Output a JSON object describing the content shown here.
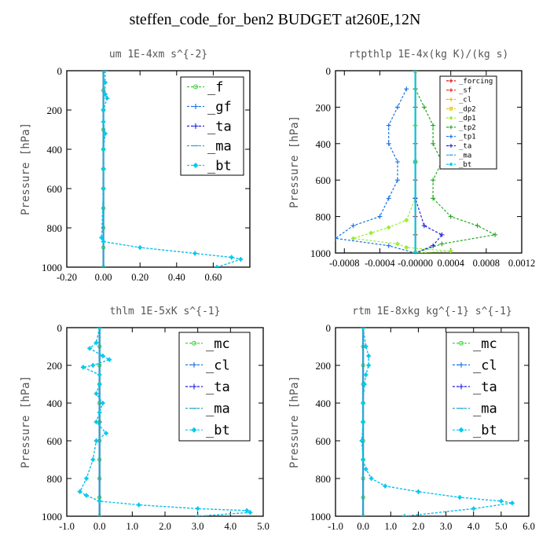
{
  "page": {
    "title": "steffen_code_for_ben2  BUDGET at260E,12N"
  },
  "chart_data": [
    {
      "type": "line",
      "title": "um  1E-4xm s^{-2}",
      "ylabel": "Pressure [hPa]",
      "xlabel": "",
      "xlim": [
        -0.2,
        0.8
      ],
      "ylim": [
        1000,
        0
      ],
      "xticks": [
        "-0.20",
        "0.00",
        "0.20",
        "0.40",
        "0.60"
      ],
      "xtick_values": [
        -0.2,
        0.0,
        0.2,
        0.4,
        0.6
      ],
      "yticks": [
        "0",
        "200",
        "400",
        "600",
        "800",
        "1000"
      ],
      "ytick_values": [
        0,
        200,
        400,
        600,
        800,
        1000
      ],
      "legend_position": "top-right",
      "series": [
        {
          "name": "_f",
          "color": "#33cc33",
          "marker": "circle",
          "x": [
            0,
            0,
            0,
            0,
            0,
            0,
            0,
            0,
            0,
            0,
            0
          ],
          "y": [
            0,
            100,
            200,
            300,
            400,
            500,
            600,
            700,
            800,
            900,
            1000
          ]
        },
        {
          "name": "_gf",
          "color": "#1a73e8",
          "marker": "plus",
          "x": [
            0.01,
            0.01,
            0.01,
            0.02,
            0.0,
            0.0,
            0.01,
            0.0,
            0.0,
            0.0,
            -0.01,
            0.0,
            0.2,
            0.5,
            0.7,
            0.75,
            0.62
          ],
          "y": [
            0,
            60,
            120,
            140,
            200,
            260,
            320,
            400,
            500,
            600,
            850,
            870,
            900,
            930,
            950,
            960,
            1000
          ]
        },
        {
          "name": "_ta",
          "color": "#2222dd",
          "marker": "plus",
          "x": [
            0,
            0,
            0
          ],
          "y": [
            0,
            500,
            1000
          ]
        },
        {
          "name": "_ma",
          "color": "#2aa7d0",
          "marker": "dash",
          "x": [
            0,
            0,
            0
          ],
          "y": [
            0,
            500,
            1000
          ]
        },
        {
          "name": "_bt",
          "color": "#00ccee",
          "marker": "diamond",
          "x": [
            0.01,
            0.01,
            0.01,
            0.02,
            0.0,
            0.0,
            0.01,
            0.0,
            0.0,
            0.0,
            -0.01,
            0.0,
            0.2,
            0.5,
            0.7,
            0.75,
            0.62
          ],
          "y": [
            0,
            60,
            120,
            140,
            200,
            260,
            320,
            400,
            500,
            600,
            850,
            870,
            900,
            930,
            950,
            960,
            1000
          ]
        }
      ]
    },
    {
      "type": "line",
      "title": "rtpthlp  1E-4x(kg K)/(kg s)",
      "ylabel": "Pressure [hPa]",
      "xlabel": "",
      "xlim": [
        -0.0009,
        0.0012
      ],
      "ylim": [
        1000,
        0
      ],
      "xticks": [
        "-0.0008",
        "-0.0004",
        "-0.00000",
        "0.0004",
        "0.0008",
        "0.0012"
      ],
      "xtick_values": [
        -0.0008,
        -0.0004,
        0.0,
        0.0004,
        0.0008,
        0.0012
      ],
      "yticks": [
        "0",
        "200",
        "400",
        "600",
        "800",
        "1000"
      ],
      "ytick_values": [
        0,
        200,
        400,
        600,
        800,
        1000
      ],
      "legend_position": "top-right",
      "series": [
        {
          "name": "_forcing",
          "color": "#dd1111",
          "marker": "plus",
          "x": [
            0,
            0,
            0,
            0,
            0,
            0,
            0,
            0,
            0,
            0,
            0
          ],
          "y": [
            0,
            100,
            200,
            300,
            400,
            500,
            600,
            700,
            800,
            900,
            1000
          ]
        },
        {
          "name": "_sf",
          "color": "#ee2222",
          "marker": "plus",
          "x": [
            0,
            0,
            0
          ],
          "y": [
            0,
            500,
            1000
          ]
        },
        {
          "name": "_cl",
          "color": "#ffb000",
          "marker": "plus",
          "x": [
            0,
            0,
            0
          ],
          "y": [
            0,
            500,
            1000
          ]
        },
        {
          "name": "_dp2",
          "color": "#e8c000",
          "marker": "square",
          "x": [
            0,
            0,
            0
          ],
          "y": [
            0,
            500,
            1000
          ]
        },
        {
          "name": "_dp1",
          "color": "#99ee33",
          "marker": "diamond",
          "x": [
            0,
            0,
            0,
            -0.0001,
            -0.0003,
            -0.0005,
            -0.0007,
            -0.0002,
            -0.0001,
            0.0004,
            0.0
          ],
          "y": [
            0,
            300,
            700,
            820,
            860,
            890,
            920,
            950,
            970,
            990,
            1000
          ]
        },
        {
          "name": "_tp2",
          "color": "#22aa22",
          "marker": "plus",
          "x": [
            0,
            0.0001,
            0.0002,
            0.0002,
            0.0003,
            0.0002,
            0.0002,
            0.0004,
            0.0007,
            0.0009,
            0.0003,
            0.0
          ],
          "y": [
            100,
            200,
            300,
            400,
            500,
            600,
            700,
            800,
            850,
            900,
            950,
            1000
          ]
        },
        {
          "name": "_tp1",
          "color": "#1a73e8",
          "marker": "plus",
          "x": [
            -0.0001,
            -0.0002,
            -0.0003,
            -0.0003,
            -0.0002,
            -0.0002,
            -0.0003,
            -0.0004,
            -0.0007,
            -0.0009,
            -0.0003,
            0.0
          ],
          "y": [
            100,
            200,
            300,
            400,
            500,
            600,
            700,
            800,
            850,
            920,
            960,
            1000
          ]
        },
        {
          "name": "_ta",
          "color": "#2222dd",
          "marker": "plus",
          "x": [
            0,
            0,
            0.0001,
            0.0003,
            0.0002,
            0.0
          ],
          "y": [
            0,
            700,
            850,
            900,
            960,
            1000
          ]
        },
        {
          "name": "_ma",
          "color": "#2aa7d0",
          "marker": "dash",
          "x": [
            0,
            0,
            0
          ],
          "y": [
            0,
            500,
            1000
          ]
        },
        {
          "name": "_bt",
          "color": "#00ccee",
          "marker": "diamond",
          "x": [
            0,
            0,
            0
          ],
          "y": [
            0,
            500,
            1000
          ]
        }
      ]
    },
    {
      "type": "line",
      "title": "thlm  1E-5xK s^{-1}",
      "ylabel": "Pressure [hPa]",
      "xlabel": "",
      "xlim": [
        -1.0,
        5.0
      ],
      "ylim": [
        1000,
        0
      ],
      "xticks": [
        "-1.0",
        "0.0",
        "1.0",
        "2.0",
        "3.0",
        "4.0",
        "5.0"
      ],
      "xtick_values": [
        -1.0,
        0.0,
        1.0,
        2.0,
        3.0,
        4.0,
        5.0
      ],
      "yticks": [
        "0",
        "200",
        "400",
        "600",
        "800",
        "1000"
      ],
      "ytick_values": [
        0,
        200,
        400,
        600,
        800,
        1000
      ],
      "legend_position": "top-right",
      "series": [
        {
          "name": "_mc",
          "color": "#33cc33",
          "marker": "circle",
          "x": [
            0,
            0,
            0,
            0,
            0,
            0,
            0,
            0,
            0,
            0,
            0
          ],
          "y": [
            0,
            100,
            200,
            300,
            400,
            500,
            600,
            700,
            800,
            900,
            1000
          ]
        },
        {
          "name": "_cl",
          "color": "#1a73e8",
          "marker": "plus",
          "x": [
            0.0,
            -0.1,
            -0.3,
            0.1,
            0.3,
            -0.2,
            -0.5,
            0.0,
            0.0,
            -0.1,
            0.1,
            0.0,
            -0.1,
            0.2,
            -0.1,
            -0.2,
            -0.4,
            -0.6,
            -0.4,
            0.0,
            1.2,
            3.0,
            4.5,
            4.6,
            3.0
          ],
          "y": [
            0,
            80,
            110,
            150,
            170,
            200,
            210,
            250,
            300,
            350,
            400,
            450,
            500,
            560,
            600,
            700,
            800,
            870,
            890,
            920,
            940,
            960,
            970,
            980,
            1000
          ]
        },
        {
          "name": "_ta",
          "color": "#2222dd",
          "marker": "plus",
          "x": [
            0,
            0,
            0
          ],
          "y": [
            0,
            500,
            1000
          ]
        },
        {
          "name": "_ma",
          "color": "#2aa7d0",
          "marker": "dash",
          "x": [
            0,
            0,
            0
          ],
          "y": [
            0,
            500,
            1000
          ]
        },
        {
          "name": "_bt",
          "color": "#00ccee",
          "marker": "diamond",
          "x": [
            0.0,
            -0.1,
            -0.3,
            0.1,
            0.3,
            -0.2,
            -0.5,
            0.0,
            0.0,
            -0.1,
            0.1,
            0.0,
            -0.1,
            0.2,
            -0.1,
            -0.2,
            -0.4,
            -0.6,
            -0.4,
            0.0,
            1.2,
            3.0,
            4.5,
            4.6,
            3.0
          ],
          "y": [
            0,
            80,
            110,
            150,
            170,
            200,
            210,
            250,
            300,
            350,
            400,
            450,
            500,
            560,
            600,
            700,
            800,
            870,
            890,
            920,
            940,
            960,
            970,
            980,
            1000
          ]
        }
      ]
    },
    {
      "type": "line",
      "title": "rtm  1E-8xkg kg^{-1} s^{-1}",
      "ylabel": "Pressure [hPa]",
      "xlabel": "",
      "xlim": [
        -1.0,
        6.0
      ],
      "ylim": [
        1000,
        0
      ],
      "xticks": [
        "-1.0",
        "0.0",
        "1.0",
        "2.0",
        "3.0",
        "4.0",
        "5.0",
        "6.0"
      ],
      "xtick_values": [
        -1.0,
        0.0,
        1.0,
        2.0,
        3.0,
        4.0,
        5.0,
        6.0
      ],
      "yticks": [
        "0",
        "200",
        "400",
        "600",
        "800",
        "1000"
      ],
      "ytick_values": [
        0,
        200,
        400,
        600,
        800,
        1000
      ],
      "legend_position": "top-right",
      "series": [
        {
          "name": "_mc",
          "color": "#33cc33",
          "marker": "circle",
          "x": [
            0,
            0,
            0,
            0,
            0,
            0,
            0,
            0,
            0,
            0,
            0
          ],
          "y": [
            0,
            100,
            200,
            300,
            400,
            500,
            600,
            700,
            800,
            900,
            1000
          ]
        },
        {
          "name": "_cl",
          "color": "#1a73e8",
          "marker": "plus",
          "x": [
            0.0,
            0.1,
            0.2,
            0.2,
            0.1,
            0.05,
            0.0,
            0.0,
            -0.05,
            0.0,
            0.1,
            0.3,
            0.8,
            2.0,
            3.5,
            5.0,
            5.4,
            4.0,
            1.5
          ],
          "y": [
            0,
            100,
            150,
            200,
            250,
            300,
            400,
            500,
            600,
            700,
            750,
            800,
            840,
            870,
            900,
            920,
            930,
            960,
            1000
          ]
        },
        {
          "name": "_ta",
          "color": "#2222dd",
          "marker": "plus",
          "x": [
            0,
            0,
            0
          ],
          "y": [
            0,
            500,
            1000
          ]
        },
        {
          "name": "_ma",
          "color": "#2aa7d0",
          "marker": "dash",
          "x": [
            0,
            0,
            0
          ],
          "y": [
            0,
            500,
            1000
          ]
        },
        {
          "name": "_bt",
          "color": "#00ccee",
          "marker": "diamond",
          "x": [
            0.0,
            0.1,
            0.2,
            0.2,
            0.1,
            0.05,
            0.0,
            0.0,
            -0.05,
            0.0,
            0.1,
            0.3,
            0.8,
            2.0,
            3.5,
            5.0,
            5.4,
            4.0,
            1.5
          ],
          "y": [
            0,
            100,
            150,
            200,
            250,
            300,
            400,
            500,
            600,
            700,
            750,
            800,
            840,
            870,
            900,
            920,
            930,
            960,
            1000
          ]
        }
      ]
    }
  ]
}
